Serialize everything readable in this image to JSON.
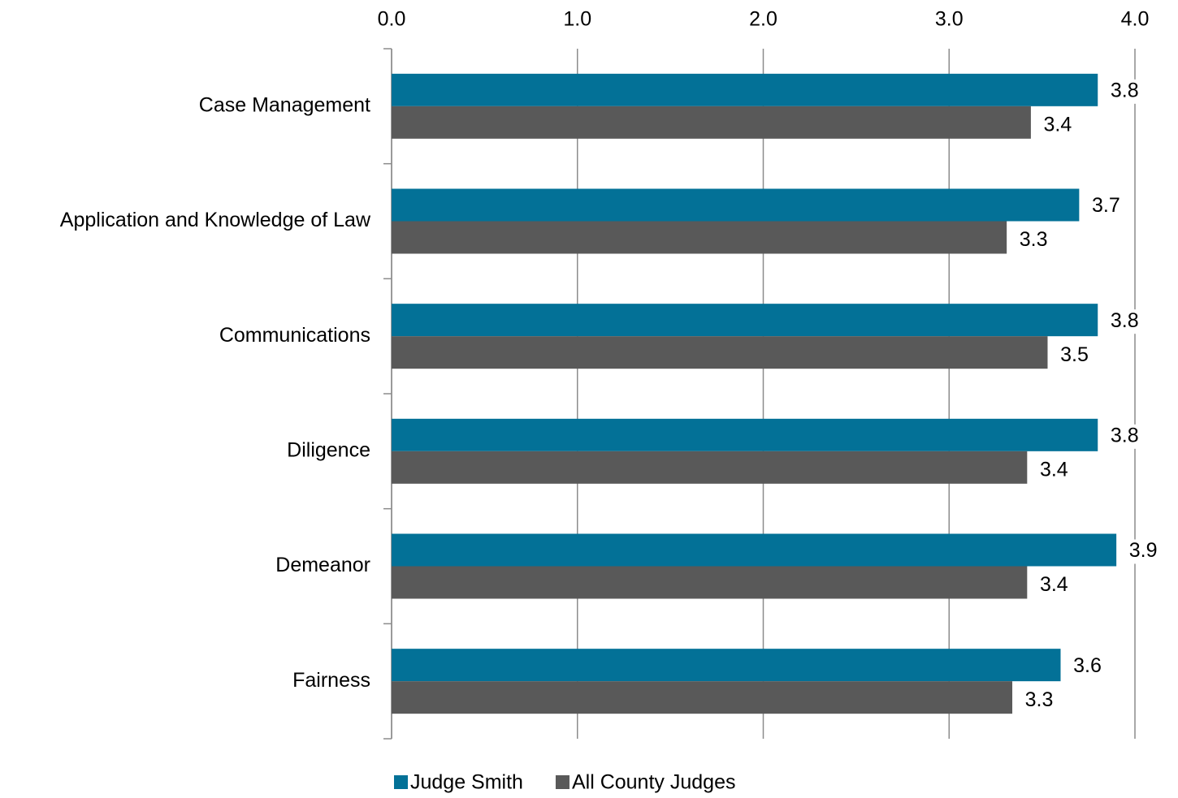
{
  "chart_data": {
    "type": "bar",
    "orientation": "horizontal",
    "categories": [
      "Case Management",
      "Application and Knowledge of Law",
      "Communications",
      "Diligence",
      "Demeanor",
      "Fairness"
    ],
    "series": [
      {
        "name": "Judge Smith",
        "color": "#037197",
        "values": [
          3.8,
          3.7,
          3.8,
          3.8,
          3.9,
          3.6
        ],
        "value_labels": [
          "3.8",
          "3.7",
          "3.8",
          "3.8",
          "3.9",
          "3.6"
        ]
      },
      {
        "name": "All County Judges",
        "color": "#595959",
        "values": [
          3.44,
          3.31,
          3.53,
          3.42,
          3.42,
          3.34
        ],
        "value_labels": [
          "3.4",
          "3.3",
          "3.5",
          "3.4",
          "3.4",
          "3.3"
        ]
      }
    ],
    "xlim": [
      0,
      4
    ],
    "xticks": [
      {
        "value": 0,
        "label": "0.0"
      },
      {
        "value": 1,
        "label": "1.0"
      },
      {
        "value": 2,
        "label": "2.0"
      },
      {
        "value": 3,
        "label": "3.0"
      },
      {
        "value": 4,
        "label": "4.0"
      }
    ],
    "grid": true,
    "legend": "bottom"
  }
}
